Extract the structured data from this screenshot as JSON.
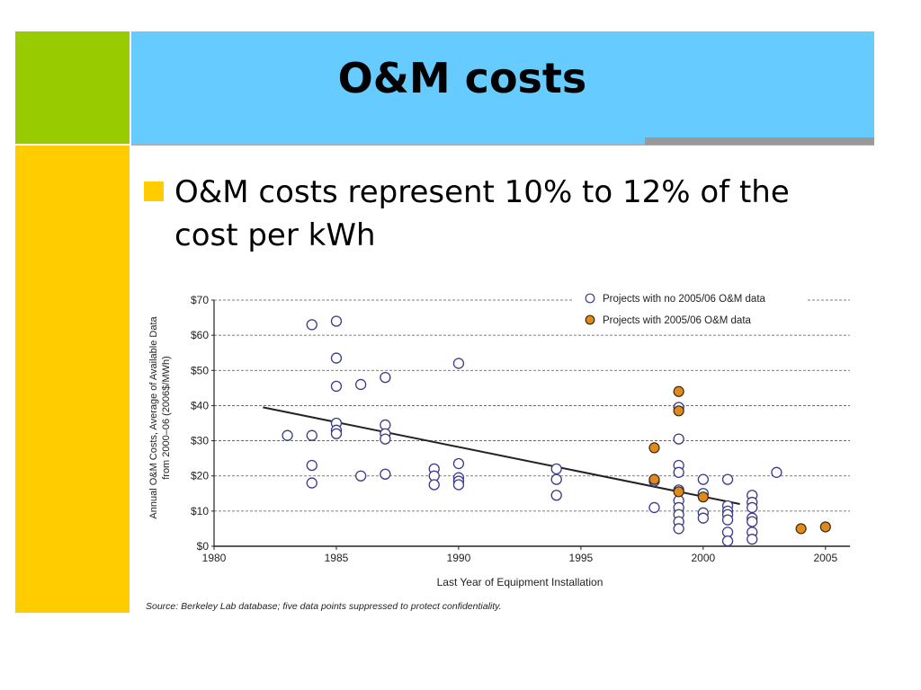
{
  "slide": {
    "title": "O&M costs",
    "bullet": "O&M costs represent 10% to 12% of the cost per kWh"
  },
  "colors": {
    "green": "#99cc00",
    "yellow": "#ffcc00",
    "title_blue": "#66ccff",
    "accent_gray": "#999999",
    "open_marker": "#3a3a8c",
    "filled_marker": "#e08a1e"
  },
  "chart_data": {
    "type": "scatter",
    "title": "",
    "xlabel": "Last Year of Equipment Installation",
    "ylabel_lines": [
      "Annual O&M Costs, Average of Available Data",
      "from 2000–06 (2006$/MWh)"
    ],
    "xlim": [
      1980,
      2006
    ],
    "ylim": [
      0,
      70
    ],
    "x_ticks": [
      1980,
      1985,
      1990,
      1995,
      2000,
      2005
    ],
    "x_tick_labels": [
      "1980",
      "1985",
      "1990",
      "1995",
      "2000",
      "2005"
    ],
    "y_ticks": [
      0,
      10,
      20,
      30,
      40,
      50,
      60,
      70
    ],
    "y_tick_labels": [
      "$0",
      "$10",
      "$20",
      "$30",
      "$40",
      "$50",
      "$60",
      "$70"
    ],
    "grid": "horizontal-dashed",
    "legend_position": "top-right",
    "source_note": "Source: Berkeley Lab database; five data points suppressed to protect confidentiality.",
    "series": [
      {
        "name": "Projects with no 2005/06 O&M data",
        "marker": "open-circle",
        "points": [
          [
            1983,
            31.5
          ],
          [
            1984,
            63
          ],
          [
            1984,
            31.5
          ],
          [
            1984,
            23
          ],
          [
            1984,
            18
          ],
          [
            1985,
            64
          ],
          [
            1985,
            53.5
          ],
          [
            1985,
            45.5
          ],
          [
            1985,
            35
          ],
          [
            1985,
            33
          ],
          [
            1985,
            32
          ],
          [
            1986,
            46
          ],
          [
            1986,
            20
          ],
          [
            1987,
            48
          ],
          [
            1987,
            34.5
          ],
          [
            1987,
            32
          ],
          [
            1987,
            30.5
          ],
          [
            1987,
            20.5
          ],
          [
            1989,
            22
          ],
          [
            1989,
            20
          ],
          [
            1989,
            17.5
          ],
          [
            1990,
            52
          ],
          [
            1990,
            23.5
          ],
          [
            1990,
            19.5
          ],
          [
            1990,
            18.5
          ],
          [
            1990,
            17.5
          ],
          [
            1994,
            22
          ],
          [
            1994,
            19
          ],
          [
            1994,
            14.5
          ],
          [
            1998,
            18.5
          ],
          [
            1998,
            11
          ],
          [
            1999,
            39.5
          ],
          [
            1999,
            30.5
          ],
          [
            1999,
            23
          ],
          [
            1999,
            21
          ],
          [
            1999,
            16
          ],
          [
            1999,
            13
          ],
          [
            1999,
            11
          ],
          [
            1999,
            9
          ],
          [
            1999,
            7
          ],
          [
            1999,
            5
          ],
          [
            2000,
            19
          ],
          [
            2000,
            15
          ],
          [
            2000,
            9.5
          ],
          [
            2000,
            8
          ],
          [
            2001,
            19
          ],
          [
            2001,
            11.5
          ],
          [
            2001,
            10
          ],
          [
            2001,
            9
          ],
          [
            2001,
            7.5
          ],
          [
            2001,
            4
          ],
          [
            2001,
            1.5
          ],
          [
            2002,
            14.5
          ],
          [
            2002,
            12.5
          ],
          [
            2002,
            11
          ],
          [
            2002,
            8
          ],
          [
            2002,
            7
          ],
          [
            2002,
            4
          ],
          [
            2002,
            2
          ],
          [
            2003,
            21
          ]
        ]
      },
      {
        "name": "Projects with 2005/06 O&M data",
        "marker": "filled-circle",
        "points": [
          [
            1998,
            28
          ],
          [
            1998,
            19
          ],
          [
            1999,
            44
          ],
          [
            1999,
            38.5
          ],
          [
            1999,
            15.5
          ],
          [
            2000,
            14
          ],
          [
            2004,
            5
          ],
          [
            2005,
            5.5
          ]
        ]
      }
    ],
    "trendline": {
      "from": [
        1982,
        39.5
      ],
      "to": [
        2001.5,
        12
      ]
    }
  }
}
